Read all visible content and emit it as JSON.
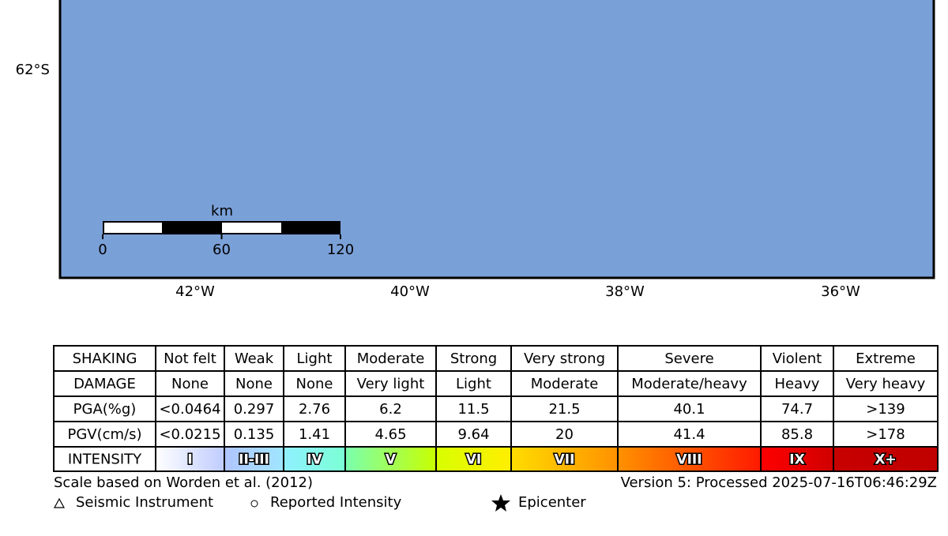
{
  "map": {
    "lat_labels": [
      "62°S"
    ],
    "lon_labels": [
      "42°W",
      "40°W",
      "38°W",
      "36°W"
    ],
    "scale_bar": {
      "unit": "km",
      "ticks": [
        0,
        60,
        120
      ]
    }
  },
  "legend_table": {
    "rows": [
      [
        "SHAKING",
        "Not felt",
        "Weak",
        "Light",
        "Moderate",
        "Strong",
        "Very strong",
        "Severe",
        "Violent",
        "Extreme"
      ],
      [
        "DAMAGE",
        "None",
        "None",
        "None",
        "Very light",
        "Light",
        "Moderate",
        "Moderate/heavy",
        "Heavy",
        "Very heavy"
      ],
      [
        "PGA(%g)",
        "<0.0464",
        "0.297",
        "2.76",
        "6.2",
        "11.5",
        "21.5",
        "40.1",
        "74.7",
        ">139"
      ],
      [
        "PGV(cm/s)",
        "<0.0215",
        "0.135",
        "1.41",
        "4.65",
        "9.64",
        "20",
        "41.4",
        "85.8",
        ">178"
      ],
      [
        "INTENSITY",
        "I",
        "II-III",
        "IV",
        "V",
        "VI",
        "VII",
        "VIII",
        "IX",
        "X+"
      ]
    ]
  },
  "footer": {
    "left": "Scale based on Worden et al. (2012)",
    "right": "Version 5: Processed 2025-07-16T06:46:29Z",
    "symbols": [
      "Seismic Instrument",
      "Reported Intensity",
      "Epicenter"
    ]
  }
}
